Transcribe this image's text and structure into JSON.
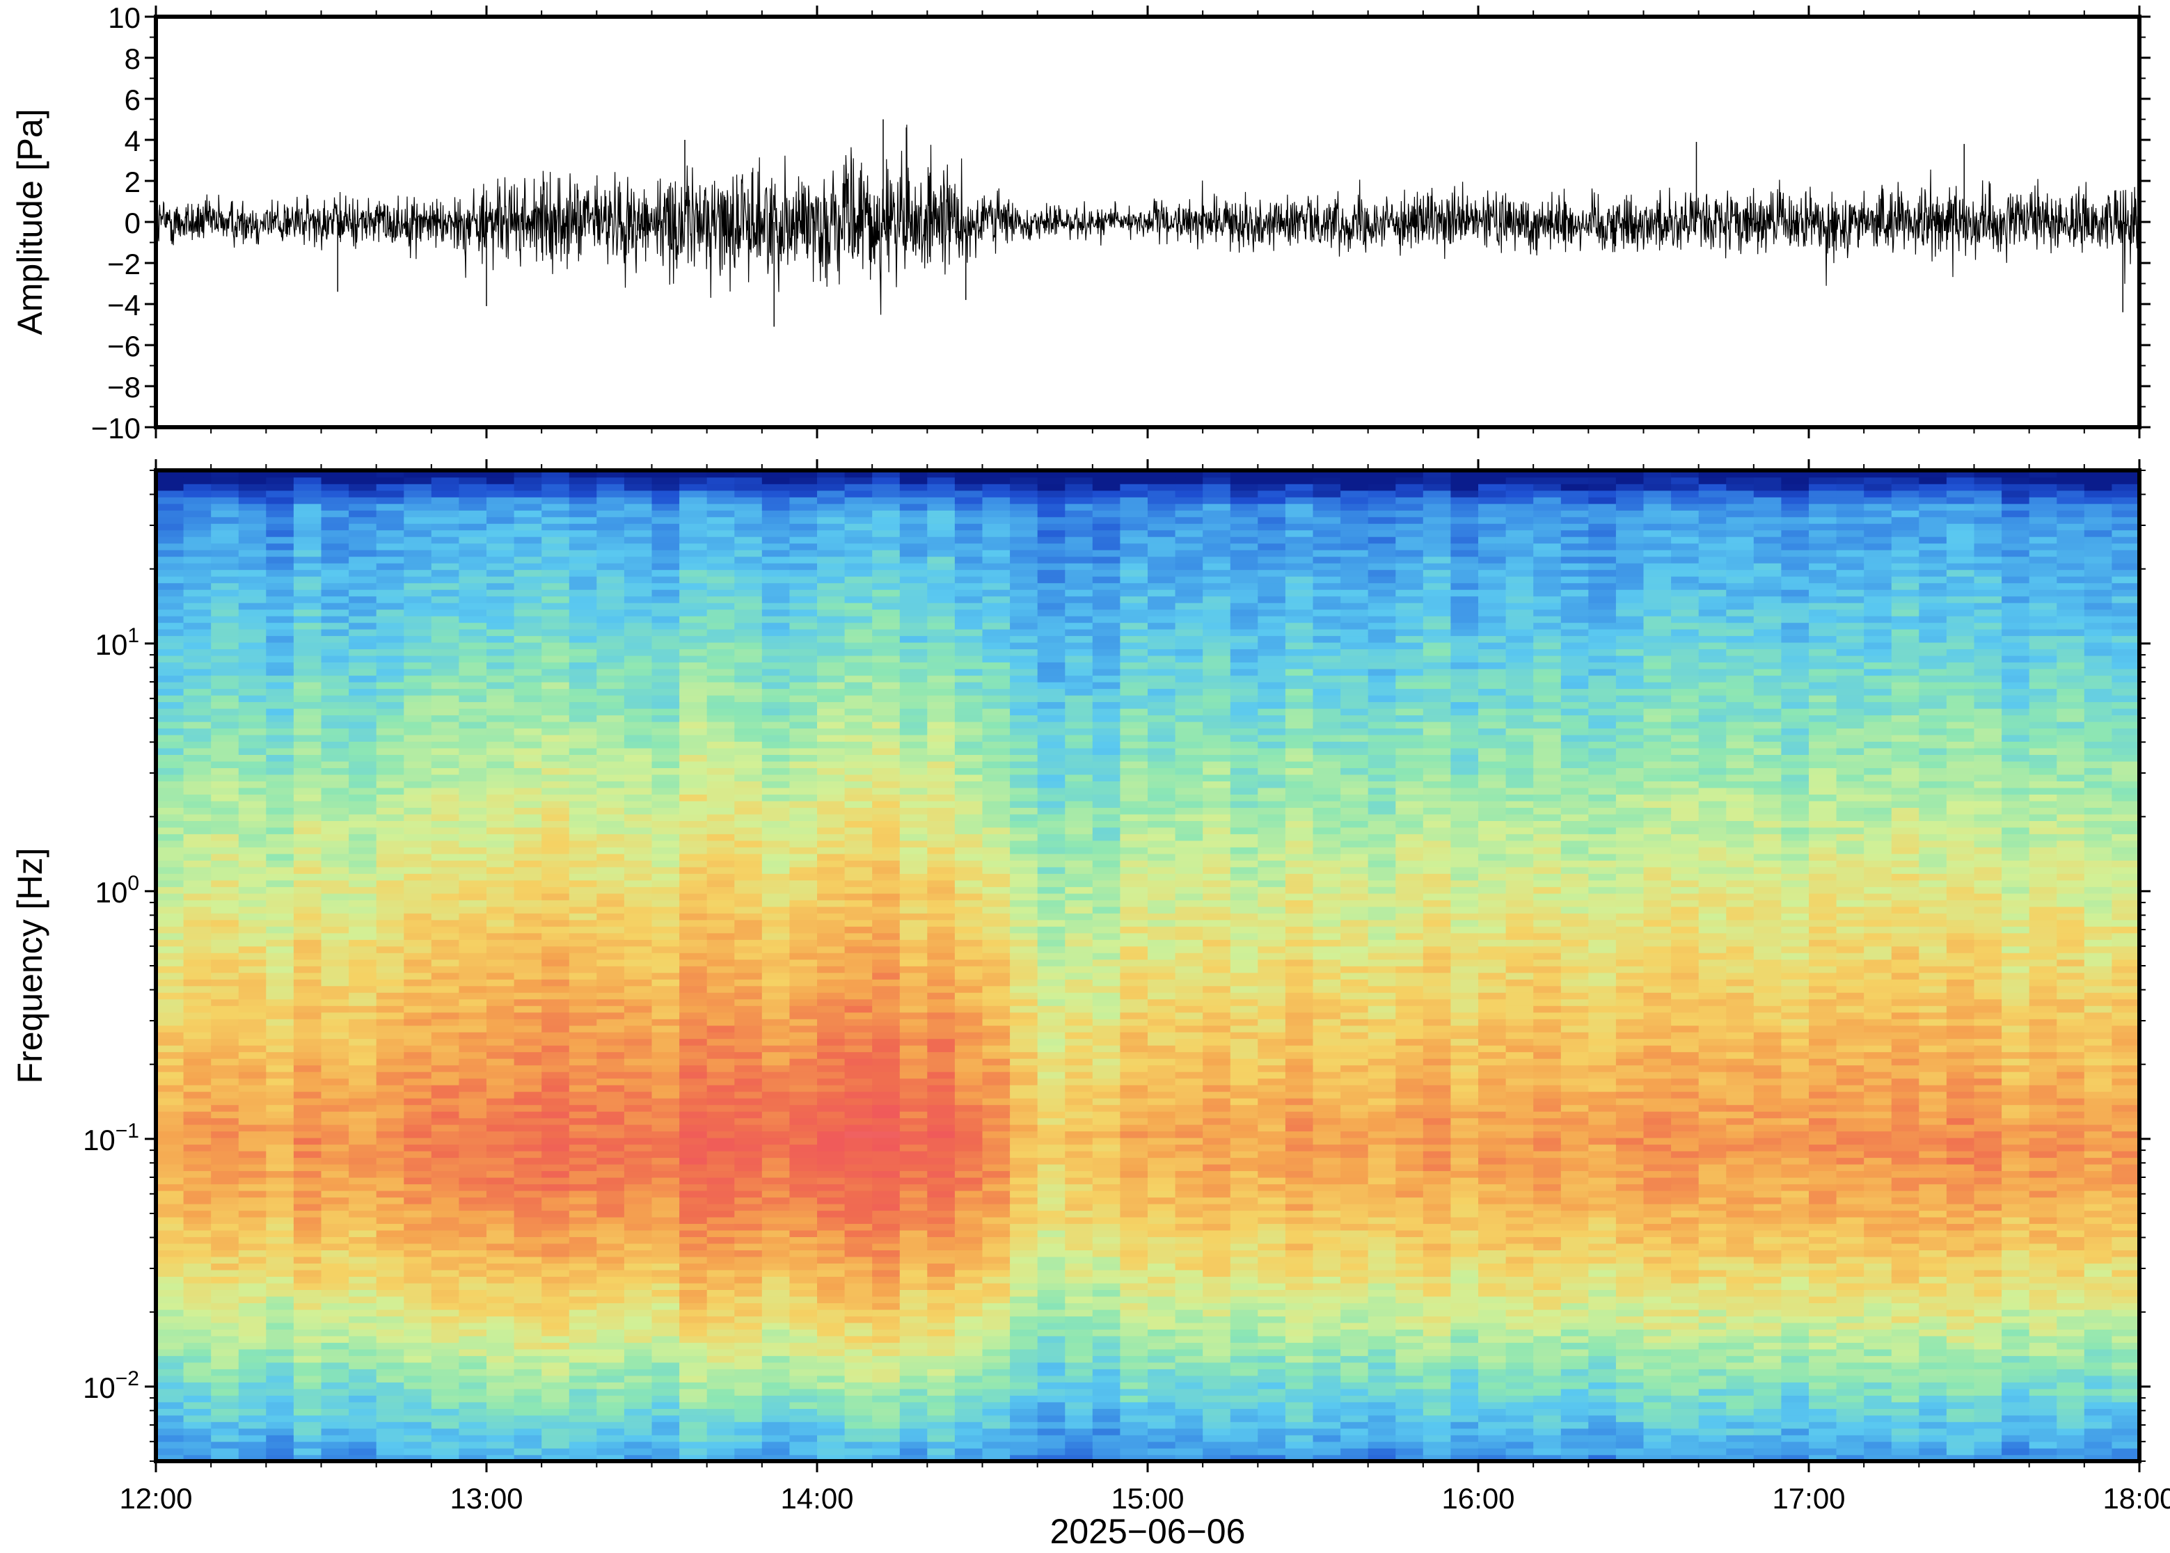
{
  "chart_data": [
    {
      "type": "line",
      "panel": "waveform",
      "ylabel": "Amplitude [Pa]",
      "ylim": [
        -10,
        10
      ],
      "yticks": [
        "10",
        "8",
        "6",
        "4",
        "2",
        "0",
        "−2",
        "−4",
        "−6",
        "−8",
        "−10"
      ],
      "ytick_values": [
        10,
        8,
        6,
        4,
        2,
        0,
        -2,
        -4,
        -6,
        -8,
        -10
      ],
      "xlim_hours": [
        12,
        18
      ],
      "grid": false,
      "envelope": {
        "time_hours": [
          12.0,
          12.25,
          12.5,
          12.75,
          12.9,
          13.0,
          13.25,
          13.5,
          13.65,
          13.8,
          14.0,
          14.1,
          14.2,
          14.3,
          14.4,
          14.5,
          14.6,
          14.75,
          15.0,
          15.25,
          15.5,
          15.75,
          16.0,
          16.25,
          16.5,
          16.75,
          17.0,
          17.25,
          17.5,
          17.75,
          18.0
        ],
        "abs_amplitude_pa": [
          1.4,
          1.3,
          1.4,
          1.4,
          1.5,
          2.2,
          2.4,
          2.6,
          3.0,
          3.1,
          3.0,
          3.3,
          3.6,
          3.2,
          2.6,
          2.2,
          1.0,
          0.9,
          1.0,
          1.3,
          1.5,
          1.5,
          1.6,
          1.7,
          1.6,
          1.7,
          1.7,
          1.8,
          1.8,
          1.7,
          1.8
        ]
      },
      "peaks": [
        {
          "time_hours": 12.55,
          "value": -3.4
        },
        {
          "time_hours": 13.0,
          "value": -4.1
        },
        {
          "time_hours": 13.6,
          "value": 4.0
        },
        {
          "time_hours": 13.87,
          "value": -5.1
        },
        {
          "time_hours": 14.2,
          "value": 5.0
        },
        {
          "time_hours": 14.27,
          "value": 4.6
        },
        {
          "time_hours": 14.45,
          "value": -3.8
        },
        {
          "time_hours": 16.66,
          "value": 3.9
        },
        {
          "time_hours": 17.47,
          "value": 3.8
        },
        {
          "time_hours": 17.95,
          "value": -4.4
        }
      ]
    },
    {
      "type": "heatmap",
      "panel": "spectrogram",
      "ylabel": "Frequency [Hz]",
      "yscale": "log",
      "ylim_hz": [
        0.005,
        50
      ],
      "yticks": [
        {
          "value": 0.01,
          "base": "10",
          "exp": "−2"
        },
        {
          "value": 0.1,
          "base": "10",
          "exp": "−1"
        },
        {
          "value": 1,
          "base": "10",
          "exp": "0"
        },
        {
          "value": 10,
          "base": "10",
          "exp": "1"
        }
      ],
      "xlabel": "2025−06−06",
      "xticks": [
        "12:00",
        "13:00",
        "14:00",
        "15:00",
        "16:00",
        "17:00",
        "18:00"
      ],
      "xtick_hours": [
        12,
        13,
        14,
        15,
        16,
        17,
        18
      ],
      "colormap": [
        "#0a1c8c",
        "#1e50d2",
        "#3c91e6",
        "#5ac8f0",
        "#8ce6b4",
        "#d2f096",
        "#f5d264",
        "#f5a550",
        "#f06e50",
        "#f05a5a",
        "#f5a0a0"
      ],
      "power_scale_note_visible": false,
      "activity_by_time": {
        "time_hours": [
          12.0,
          12.5,
          13.0,
          13.5,
          14.0,
          14.25,
          14.5,
          14.65,
          14.8,
          15.0,
          15.5,
          16.0,
          16.5,
          16.75,
          17.0,
          17.5,
          18.0
        ],
        "level": [
          0.55,
          0.58,
          0.68,
          0.78,
          0.86,
          0.9,
          0.8,
          0.35,
          0.4,
          0.48,
          0.56,
          0.58,
          0.6,
          0.5,
          0.58,
          0.6,
          0.6
        ]
      }
    }
  ]
}
